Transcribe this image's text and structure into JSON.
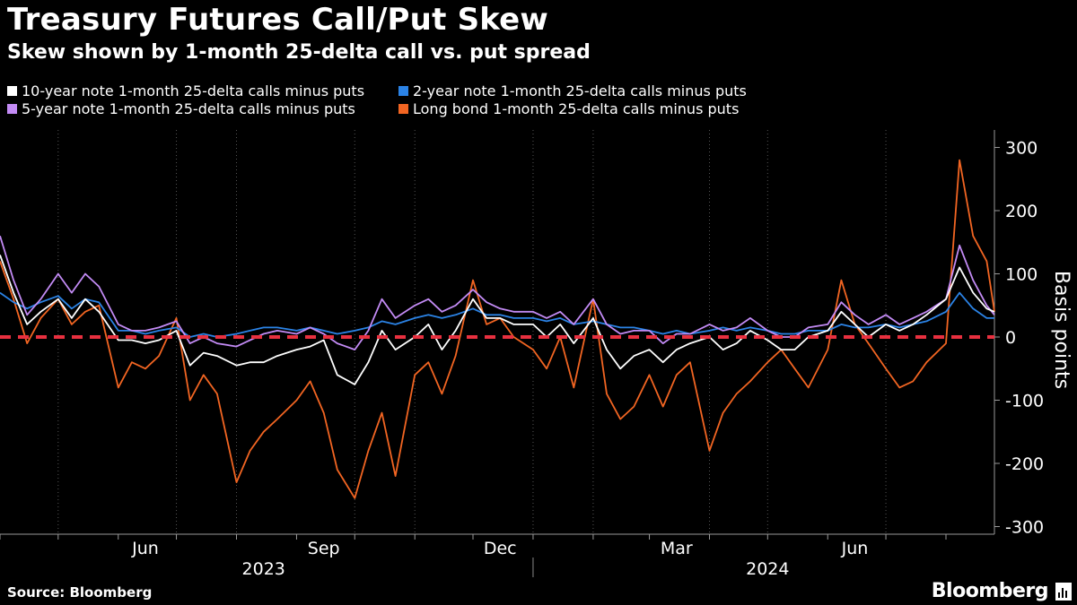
{
  "chart_data": {
    "type": "line",
    "title": "Treasury Futures Call/Put Skew",
    "subtitle": "Skew shown by 1-month 25-delta call vs. put spread",
    "ylabel": "Basis points",
    "ylim": [
      -300,
      300
    ],
    "yticks": [
      "300",
      "200",
      "100",
      "0",
      "-100",
      "-200",
      "-300"
    ],
    "reference_line": 0,
    "x_range": [
      "2023-04-01",
      "2024-08-26"
    ],
    "x_ticks": [
      {
        "label": "Jun",
        "date": "2023-06-15"
      },
      {
        "label": "Sep",
        "date": "2023-09-15"
      },
      {
        "label": "Dec",
        "date": "2023-12-15"
      },
      {
        "label": "Mar",
        "date": "2024-03-15"
      },
      {
        "label": "Jun",
        "date": "2024-06-15"
      }
    ],
    "year_labels": [
      {
        "label": "2023",
        "date": "2023-08-15"
      },
      {
        "label": "2024",
        "date": "2024-05-01"
      }
    ],
    "series": [
      {
        "name": "10-year note 1-month 25-delta calls minus puts",
        "color": "#ffffff",
        "points": [
          [
            "2023-04-01",
            130
          ],
          [
            "2023-04-08",
            70
          ],
          [
            "2023-04-15",
            20
          ],
          [
            "2023-04-22",
            40
          ],
          [
            "2023-05-01",
            60
          ],
          [
            "2023-05-08",
            30
          ],
          [
            "2023-05-15",
            60
          ],
          [
            "2023-05-22",
            40
          ],
          [
            "2023-06-01",
            -5
          ],
          [
            "2023-06-08",
            -5
          ],
          [
            "2023-06-15",
            -10
          ],
          [
            "2023-06-22",
            -5
          ],
          [
            "2023-07-01",
            10
          ],
          [
            "2023-07-08",
            -45
          ],
          [
            "2023-07-15",
            -25
          ],
          [
            "2023-07-22",
            -30
          ],
          [
            "2023-08-01",
            -45
          ],
          [
            "2023-08-08",
            -40
          ],
          [
            "2023-08-15",
            -40
          ],
          [
            "2023-08-22",
            -30
          ],
          [
            "2023-09-01",
            -20
          ],
          [
            "2023-09-08",
            -15
          ],
          [
            "2023-09-15",
            -5
          ],
          [
            "2023-09-22",
            -60
          ],
          [
            "2023-10-01",
            -75
          ],
          [
            "2023-10-08",
            -40
          ],
          [
            "2023-10-15",
            10
          ],
          [
            "2023-10-22",
            -20
          ],
          [
            "2023-11-01",
            0
          ],
          [
            "2023-11-08",
            20
          ],
          [
            "2023-11-15",
            -20
          ],
          [
            "2023-11-22",
            10
          ],
          [
            "2023-12-01",
            60
          ],
          [
            "2023-12-08",
            30
          ],
          [
            "2023-12-15",
            30
          ],
          [
            "2023-12-22",
            20
          ],
          [
            "2024-01-01",
            20
          ],
          [
            "2024-01-08",
            0
          ],
          [
            "2024-01-15",
            20
          ],
          [
            "2024-01-22",
            -10
          ],
          [
            "2024-02-01",
            30
          ],
          [
            "2024-02-08",
            -20
          ],
          [
            "2024-02-15",
            -50
          ],
          [
            "2024-02-22",
            -30
          ],
          [
            "2024-03-01",
            -20
          ],
          [
            "2024-03-08",
            -40
          ],
          [
            "2024-03-15",
            -20
          ],
          [
            "2024-03-22",
            -10
          ],
          [
            "2024-04-01",
            0
          ],
          [
            "2024-04-08",
            -20
          ],
          [
            "2024-04-15",
            -10
          ],
          [
            "2024-04-22",
            10
          ],
          [
            "2024-05-01",
            -5
          ],
          [
            "2024-05-08",
            -20
          ],
          [
            "2024-05-15",
            -20
          ],
          [
            "2024-05-22",
            0
          ],
          [
            "2024-06-01",
            10
          ],
          [
            "2024-06-08",
            40
          ],
          [
            "2024-06-15",
            20
          ],
          [
            "2024-06-22",
            0
          ],
          [
            "2024-07-01",
            20
          ],
          [
            "2024-07-08",
            10
          ],
          [
            "2024-07-15",
            20
          ],
          [
            "2024-07-22",
            35
          ],
          [
            "2024-08-01",
            60
          ],
          [
            "2024-08-08",
            110
          ],
          [
            "2024-08-15",
            70
          ],
          [
            "2024-08-22",
            45
          ],
          [
            "2024-08-26",
            40
          ]
        ]
      },
      {
        "name": "2-year note 1-month 25-delta calls minus puts",
        "color": "#2b83e6",
        "points": [
          [
            "2023-04-01",
            70
          ],
          [
            "2023-04-08",
            55
          ],
          [
            "2023-04-15",
            45
          ],
          [
            "2023-04-22",
            55
          ],
          [
            "2023-05-01",
            65
          ],
          [
            "2023-05-08",
            45
          ],
          [
            "2023-05-15",
            60
          ],
          [
            "2023-05-22",
            55
          ],
          [
            "2023-06-01",
            10
          ],
          [
            "2023-06-08",
            10
          ],
          [
            "2023-06-15",
            5
          ],
          [
            "2023-06-22",
            10
          ],
          [
            "2023-07-01",
            15
          ],
          [
            "2023-07-08",
            0
          ],
          [
            "2023-07-15",
            5
          ],
          [
            "2023-07-22",
            0
          ],
          [
            "2023-08-01",
            5
          ],
          [
            "2023-08-08",
            10
          ],
          [
            "2023-08-15",
            15
          ],
          [
            "2023-08-22",
            15
          ],
          [
            "2023-09-01",
            10
          ],
          [
            "2023-09-08",
            15
          ],
          [
            "2023-09-15",
            10
          ],
          [
            "2023-09-22",
            5
          ],
          [
            "2023-10-01",
            10
          ],
          [
            "2023-10-08",
            15
          ],
          [
            "2023-10-15",
            25
          ],
          [
            "2023-10-22",
            20
          ],
          [
            "2023-11-01",
            30
          ],
          [
            "2023-11-08",
            35
          ],
          [
            "2023-11-15",
            30
          ],
          [
            "2023-11-22",
            35
          ],
          [
            "2023-12-01",
            45
          ],
          [
            "2023-12-08",
            35
          ],
          [
            "2023-12-15",
            35
          ],
          [
            "2023-12-22",
            30
          ],
          [
            "2024-01-01",
            30
          ],
          [
            "2024-01-08",
            25
          ],
          [
            "2024-01-15",
            30
          ],
          [
            "2024-01-22",
            20
          ],
          [
            "2024-02-01",
            25
          ],
          [
            "2024-02-08",
            20
          ],
          [
            "2024-02-15",
            15
          ],
          [
            "2024-02-22",
            15
          ],
          [
            "2024-03-01",
            10
          ],
          [
            "2024-03-08",
            5
          ],
          [
            "2024-03-15",
            10
          ],
          [
            "2024-03-22",
            5
          ],
          [
            "2024-04-01",
            10
          ],
          [
            "2024-04-08",
            15
          ],
          [
            "2024-04-15",
            10
          ],
          [
            "2024-04-22",
            15
          ],
          [
            "2024-05-01",
            10
          ],
          [
            "2024-05-08",
            5
          ],
          [
            "2024-05-15",
            5
          ],
          [
            "2024-05-22",
            10
          ],
          [
            "2024-06-01",
            10
          ],
          [
            "2024-06-08",
            20
          ],
          [
            "2024-06-15",
            15
          ],
          [
            "2024-06-22",
            15
          ],
          [
            "2024-07-01",
            20
          ],
          [
            "2024-07-08",
            15
          ],
          [
            "2024-07-15",
            20
          ],
          [
            "2024-07-22",
            25
          ],
          [
            "2024-08-01",
            40
          ],
          [
            "2024-08-08",
            70
          ],
          [
            "2024-08-15",
            45
          ],
          [
            "2024-08-22",
            30
          ],
          [
            "2024-08-26",
            30
          ]
        ]
      },
      {
        "name": "5-year note 1-month 25-delta calls minus puts",
        "color": "#c38bf5",
        "points": [
          [
            "2023-04-01",
            160
          ],
          [
            "2023-04-08",
            90
          ],
          [
            "2023-04-15",
            35
          ],
          [
            "2023-04-22",
            60
          ],
          [
            "2023-05-01",
            100
          ],
          [
            "2023-05-08",
            70
          ],
          [
            "2023-05-15",
            100
          ],
          [
            "2023-05-22",
            80
          ],
          [
            "2023-06-01",
            20
          ],
          [
            "2023-06-08",
            10
          ],
          [
            "2023-06-15",
            10
          ],
          [
            "2023-06-22",
            15
          ],
          [
            "2023-07-01",
            25
          ],
          [
            "2023-07-08",
            -10
          ],
          [
            "2023-07-15",
            0
          ],
          [
            "2023-07-22",
            -10
          ],
          [
            "2023-08-01",
            -15
          ],
          [
            "2023-08-08",
            -5
          ],
          [
            "2023-08-15",
            5
          ],
          [
            "2023-08-22",
            10
          ],
          [
            "2023-09-01",
            5
          ],
          [
            "2023-09-08",
            15
          ],
          [
            "2023-09-15",
            5
          ],
          [
            "2023-09-22",
            -10
          ],
          [
            "2023-10-01",
            -20
          ],
          [
            "2023-10-08",
            10
          ],
          [
            "2023-10-15",
            60
          ],
          [
            "2023-10-22",
            30
          ],
          [
            "2023-11-01",
            50
          ],
          [
            "2023-11-08",
            60
          ],
          [
            "2023-11-15",
            40
          ],
          [
            "2023-11-22",
            50
          ],
          [
            "2023-12-01",
            75
          ],
          [
            "2023-12-08",
            55
          ],
          [
            "2023-12-15",
            45
          ],
          [
            "2023-12-22",
            40
          ],
          [
            "2024-01-01",
            40
          ],
          [
            "2024-01-08",
            30
          ],
          [
            "2024-01-15",
            40
          ],
          [
            "2024-01-22",
            20
          ],
          [
            "2024-02-01",
            60
          ],
          [
            "2024-02-08",
            20
          ],
          [
            "2024-02-15",
            5
          ],
          [
            "2024-02-22",
            10
          ],
          [
            "2024-03-01",
            10
          ],
          [
            "2024-03-08",
            -10
          ],
          [
            "2024-03-15",
            5
          ],
          [
            "2024-03-22",
            5
          ],
          [
            "2024-04-01",
            20
          ],
          [
            "2024-04-08",
            10
          ],
          [
            "2024-04-15",
            15
          ],
          [
            "2024-04-22",
            30
          ],
          [
            "2024-05-01",
            10
          ],
          [
            "2024-05-08",
            0
          ],
          [
            "2024-05-15",
            0
          ],
          [
            "2024-05-22",
            15
          ],
          [
            "2024-06-01",
            20
          ],
          [
            "2024-06-08",
            55
          ],
          [
            "2024-06-15",
            35
          ],
          [
            "2024-06-22",
            20
          ],
          [
            "2024-07-01",
            35
          ],
          [
            "2024-07-08",
            20
          ],
          [
            "2024-07-15",
            30
          ],
          [
            "2024-07-22",
            40
          ],
          [
            "2024-08-01",
            60
          ],
          [
            "2024-08-08",
            145
          ],
          [
            "2024-08-15",
            90
          ],
          [
            "2024-08-22",
            50
          ],
          [
            "2024-08-26",
            35
          ]
        ]
      },
      {
        "name": "Long bond 1-month 25-delta calls minus puts",
        "color": "#f26522",
        "points": [
          [
            "2023-04-01",
            120
          ],
          [
            "2023-04-08",
            60
          ],
          [
            "2023-04-15",
            -10
          ],
          [
            "2023-04-22",
            30
          ],
          [
            "2023-05-01",
            60
          ],
          [
            "2023-05-08",
            20
          ],
          [
            "2023-05-15",
            40
          ],
          [
            "2023-05-22",
            50
          ],
          [
            "2023-06-01",
            -80
          ],
          [
            "2023-06-08",
            -40
          ],
          [
            "2023-06-15",
            -50
          ],
          [
            "2023-06-22",
            -30
          ],
          [
            "2023-07-01",
            30
          ],
          [
            "2023-07-08",
            -100
          ],
          [
            "2023-07-15",
            -60
          ],
          [
            "2023-07-22",
            -90
          ],
          [
            "2023-08-01",
            -230
          ],
          [
            "2023-08-08",
            -180
          ],
          [
            "2023-08-15",
            -150
          ],
          [
            "2023-08-22",
            -130
          ],
          [
            "2023-09-01",
            -100
          ],
          [
            "2023-09-08",
            -70
          ],
          [
            "2023-09-15",
            -120
          ],
          [
            "2023-09-22",
            -210
          ],
          [
            "2023-10-01",
            -255
          ],
          [
            "2023-10-08",
            -180
          ],
          [
            "2023-10-15",
            -120
          ],
          [
            "2023-10-22",
            -220
          ],
          [
            "2023-11-01",
            -60
          ],
          [
            "2023-11-08",
            -40
          ],
          [
            "2023-11-15",
            -90
          ],
          [
            "2023-11-22",
            -30
          ],
          [
            "2023-12-01",
            90
          ],
          [
            "2023-12-08",
            20
          ],
          [
            "2023-12-15",
            30
          ],
          [
            "2023-12-22",
            0
          ],
          [
            "2024-01-01",
            -20
          ],
          [
            "2024-01-08",
            -50
          ],
          [
            "2024-01-15",
            0
          ],
          [
            "2024-01-22",
            -80
          ],
          [
            "2024-02-01",
            60
          ],
          [
            "2024-02-08",
            -90
          ],
          [
            "2024-02-15",
            -130
          ],
          [
            "2024-02-22",
            -110
          ],
          [
            "2024-03-01",
            -60
          ],
          [
            "2024-03-08",
            -110
          ],
          [
            "2024-03-15",
            -60
          ],
          [
            "2024-03-22",
            -40
          ],
          [
            "2024-04-01",
            -180
          ],
          [
            "2024-04-08",
            -120
          ],
          [
            "2024-04-15",
            -90
          ],
          [
            "2024-04-22",
            -70
          ],
          [
            "2024-05-01",
            -40
          ],
          [
            "2024-05-08",
            -20
          ],
          [
            "2024-05-15",
            -50
          ],
          [
            "2024-05-22",
            -80
          ],
          [
            "2024-06-01",
            -20
          ],
          [
            "2024-06-08",
            90
          ],
          [
            "2024-06-15",
            20
          ],
          [
            "2024-06-22",
            -10
          ],
          [
            "2024-07-01",
            -50
          ],
          [
            "2024-07-08",
            -80
          ],
          [
            "2024-07-15",
            -70
          ],
          [
            "2024-07-22",
            -40
          ],
          [
            "2024-08-01",
            -10
          ],
          [
            "2024-08-08",
            280
          ],
          [
            "2024-08-15",
            160
          ],
          [
            "2024-08-22",
            120
          ],
          [
            "2024-08-26",
            40
          ]
        ]
      }
    ]
  },
  "footer": {
    "source": "Source: Bloomberg",
    "brand": "Bloomberg"
  }
}
